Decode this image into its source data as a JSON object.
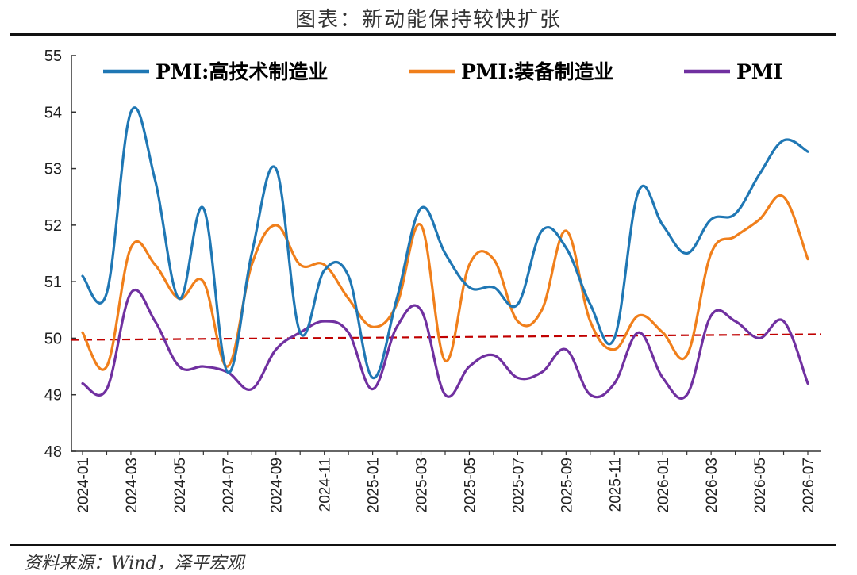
{
  "header": {
    "title": "图表：新动能保持较快扩张"
  },
  "footer": {
    "source": "资料来源：Wind，泽平宏观"
  },
  "chart_data": {
    "type": "line",
    "title": "图表：新动能保持较快扩张",
    "xlabel": "",
    "ylabel": "",
    "ylim": [
      48,
      55
    ],
    "yticks": [
      48,
      49,
      50,
      51,
      52,
      53,
      54,
      55
    ],
    "x": [
      "2024-01",
      "2024-02",
      "2024-03",
      "2024-04",
      "2024-05",
      "2024-06",
      "2024-07",
      "2024-08",
      "2024-09",
      "2024-10",
      "2024-11",
      "2024-12",
      "2025-01",
      "2025-02",
      "2025-03",
      "2025-04",
      "2025-05",
      "2025-06",
      "2025-07",
      "2025-08",
      "2025-09",
      "2025-10",
      "2025-11",
      "2025-12",
      "2026-01",
      "2026-02",
      "2026-03",
      "2026-04",
      "2026-05",
      "2026-06",
      "2026-07"
    ],
    "xtick_labels": [
      "2024-01",
      "2024-03",
      "2024-05",
      "2024-07",
      "2024-09",
      "2024-11",
      "2025-01",
      "2025-03",
      "2025-05",
      "2025-07",
      "2025-09",
      "2025-11",
      "2026-01",
      "2026-03",
      "2026-05",
      "2026-07"
    ],
    "legend_position": "top",
    "grid": false,
    "reference_line": {
      "value": 50,
      "color": "#c00000",
      "style": "dashed"
    },
    "series": [
      {
        "name": "PMI:高技术制造业",
        "color": "#1f77b4",
        "values": [
          51.1,
          50.8,
          54.0,
          52.8,
          50.7,
          52.3,
          49.4,
          51.5,
          53.0,
          50.1,
          51.2,
          51.1,
          49.3,
          50.7,
          52.3,
          51.5,
          50.9,
          50.9,
          50.6,
          51.9,
          51.6,
          50.6,
          50.0,
          52.6,
          52.0,
          51.5,
          52.1,
          52.2,
          52.9,
          53.5,
          53.3
        ]
      },
      {
        "name": "PMI:装备制造业",
        "color": "#f07f1b",
        "values": [
          50.1,
          49.5,
          51.6,
          51.3,
          50.7,
          51.0,
          49.5,
          51.3,
          52.0,
          51.3,
          51.3,
          50.7,
          50.2,
          50.6,
          52.0,
          49.6,
          51.3,
          51.4,
          50.3,
          50.5,
          51.9,
          50.3,
          49.8,
          50.4,
          50.1,
          49.7,
          51.5,
          51.8,
          52.1,
          52.5,
          51.4
        ]
      },
      {
        "name": "PMI",
        "color": "#7030a0",
        "values": [
          49.2,
          49.1,
          50.8,
          50.3,
          49.5,
          49.5,
          49.4,
          49.1,
          49.8,
          50.1,
          50.3,
          50.1,
          49.1,
          50.2,
          50.5,
          49.0,
          49.5,
          49.7,
          49.3,
          49.4,
          49.8,
          49.0,
          49.2,
          50.1,
          49.3,
          49.0,
          50.4,
          50.3,
          50.0,
          50.3,
          49.2
        ]
      }
    ]
  }
}
